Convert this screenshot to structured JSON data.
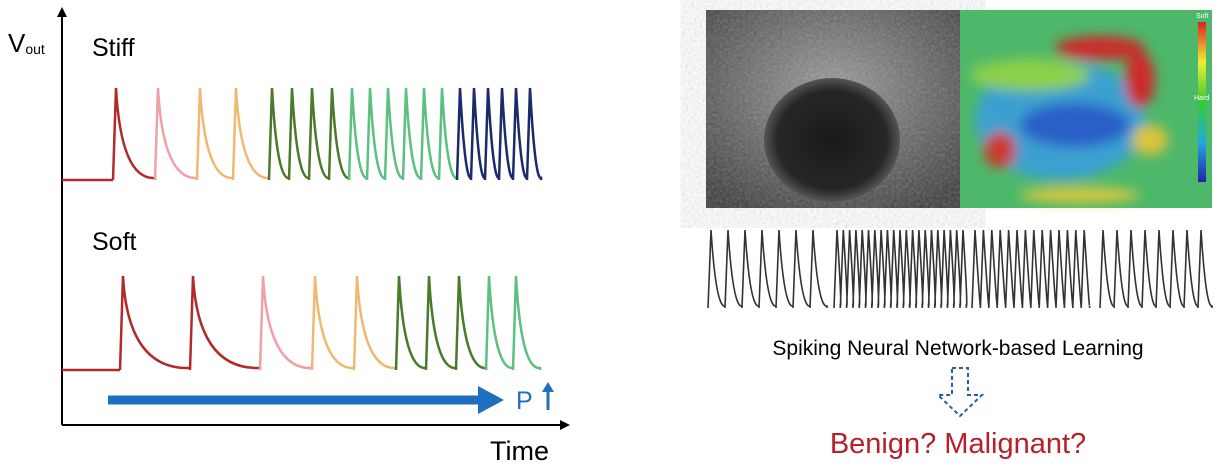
{
  "left_panel": {
    "y_axis_label": "V",
    "y_axis_subscript": "out",
    "x_axis_label": "Time",
    "traces": [
      {
        "label": "Stiff"
      },
      {
        "label": "Soft"
      }
    ],
    "pressure_label": "P"
  },
  "right_panel": {
    "colorbar_top": "Soft",
    "colorbar_bottom": "Hard",
    "method": "Spiking Neural Network-based Learning",
    "result": "Benign? Malignant?"
  }
}
